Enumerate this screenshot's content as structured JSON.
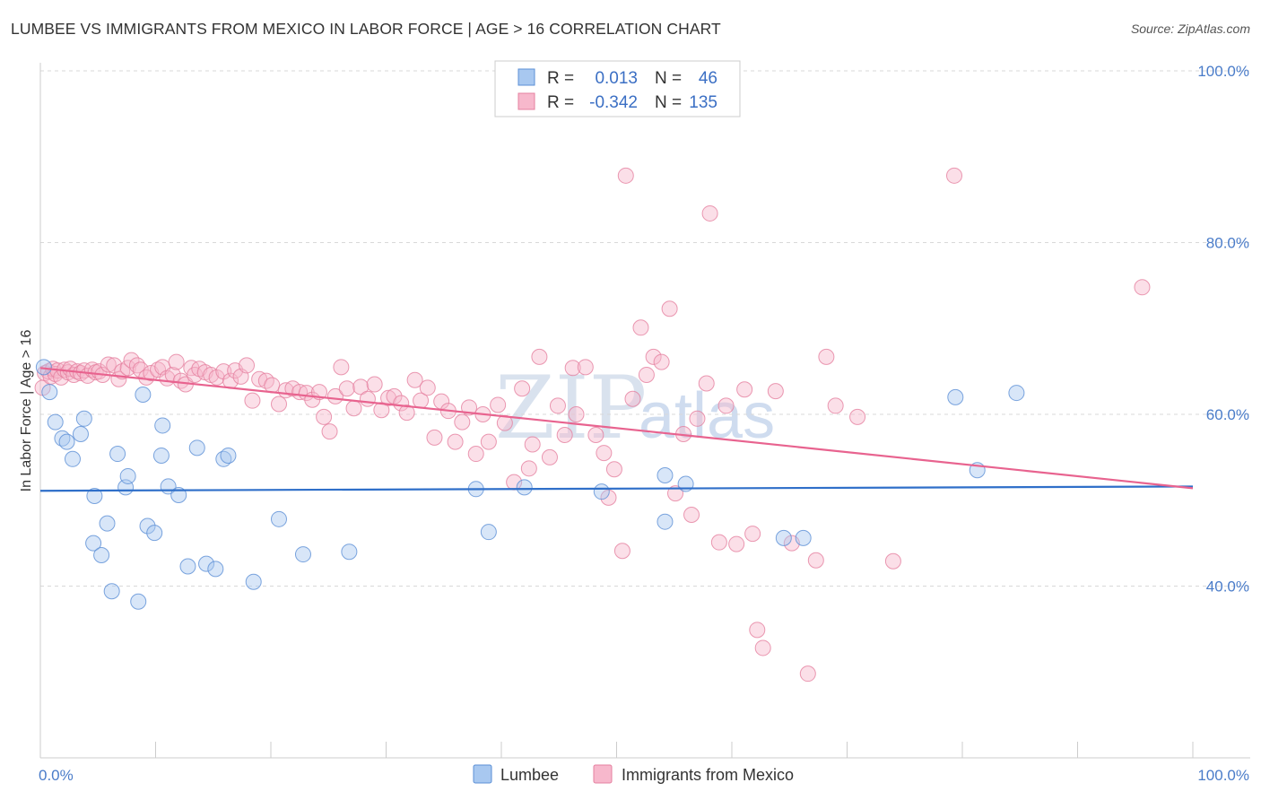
{
  "title": "LUMBEE VS IMMIGRANTS FROM MEXICO IN LABOR FORCE | AGE > 16 CORRELATION CHART",
  "source": "Source: ZipAtlas.com",
  "watermark": {
    "zip": "ZIP",
    "atlas": "atlas"
  },
  "stats": {
    "r_label": "R =",
    "n_label": "N =",
    "rows": [
      {
        "r": "0.013",
        "n": "46"
      },
      {
        "r": "-0.342",
        "n": "135"
      }
    ]
  },
  "colors": {
    "lumbee_fill": "#a8c8f0",
    "lumbee_stroke": "#5b8fd6",
    "lumbee_line": "#2f6fc9",
    "mexico_fill": "#f7b8cc",
    "mexico_stroke": "#e5809f",
    "mexico_line": "#e8638f",
    "grid": "#d8d8d8",
    "tick_text": "#4a7cc9"
  },
  "chart_data": {
    "type": "scatter",
    "title": "LUMBEE VS IMMIGRANTS FROM MEXICO IN LABOR FORCE | AGE > 16 CORRELATION CHART",
    "xlabel": "",
    "ylabel": "In Labor Force | Age > 16",
    "xlim": [
      0,
      100
    ],
    "ylim": [
      20,
      100
    ],
    "x_tick_labels": [
      "0.0%",
      "100.0%"
    ],
    "y_ticks": [
      40,
      60,
      80,
      100
    ],
    "y_tick_labels": [
      "40.0%",
      "60.0%",
      "80.0%",
      "100.0%"
    ],
    "grid": true,
    "legend_position": "bottom-center",
    "series": [
      {
        "name": "Lumbee",
        "r": 0.013,
        "n": 46,
        "trend": [
          [
            0,
            51.1
          ],
          [
            100,
            51.6
          ]
        ],
        "points": [
          [
            0.3,
            65.5
          ],
          [
            0.8,
            62.6
          ],
          [
            1.3,
            59.1
          ],
          [
            1.9,
            57.2
          ],
          [
            2.3,
            56.8
          ],
          [
            2.8,
            54.8
          ],
          [
            3.5,
            57.7
          ],
          [
            3.8,
            59.5
          ],
          [
            4.6,
            45.0
          ],
          [
            4.7,
            50.5
          ],
          [
            5.3,
            43.6
          ],
          [
            5.8,
            47.3
          ],
          [
            6.2,
            39.4
          ],
          [
            6.7,
            55.4
          ],
          [
            7.4,
            51.5
          ],
          [
            7.6,
            52.8
          ],
          [
            8.5,
            38.2
          ],
          [
            8.9,
            62.3
          ],
          [
            9.3,
            47.0
          ],
          [
            9.9,
            46.2
          ],
          [
            10.5,
            55.2
          ],
          [
            10.6,
            58.7
          ],
          [
            11.1,
            51.6
          ],
          [
            12.0,
            50.6
          ],
          [
            12.8,
            42.3
          ],
          [
            13.6,
            56.1
          ],
          [
            14.4,
            42.6
          ],
          [
            15.2,
            42.0
          ],
          [
            15.9,
            54.8
          ],
          [
            16.3,
            55.2
          ],
          [
            18.5,
            40.5
          ],
          [
            20.7,
            47.8
          ],
          [
            22.8,
            43.7
          ],
          [
            26.8,
            44.0
          ],
          [
            37.8,
            51.3
          ],
          [
            38.9,
            46.3
          ],
          [
            42.0,
            51.5
          ],
          [
            48.7,
            51.0
          ],
          [
            54.2,
            52.9
          ],
          [
            54.2,
            47.5
          ],
          [
            56.0,
            51.9
          ],
          [
            64.5,
            45.6
          ],
          [
            66.2,
            45.6
          ],
          [
            79.4,
            62.0
          ],
          [
            81.3,
            53.5
          ],
          [
            84.7,
            62.5
          ]
        ]
      },
      {
        "name": "Immigrants from Mexico",
        "r": -0.342,
        "n": 135,
        "trend": [
          [
            0,
            65.4
          ],
          [
            100,
            51.4
          ]
        ],
        "points": [
          [
            0.2,
            63.1
          ],
          [
            0.4,
            64.8
          ],
          [
            0.7,
            65.0
          ],
          [
            0.9,
            64.4
          ],
          [
            1.1,
            65.3
          ],
          [
            1.3,
            64.7
          ],
          [
            1.5,
            65.1
          ],
          [
            1.8,
            64.3
          ],
          [
            2.1,
            65.2
          ],
          [
            2.4,
            64.9
          ],
          [
            2.6,
            65.3
          ],
          [
            2.9,
            64.6
          ],
          [
            3.2,
            65.0
          ],
          [
            3.5,
            64.8
          ],
          [
            3.8,
            65.1
          ],
          [
            4.1,
            64.5
          ],
          [
            4.5,
            65.2
          ],
          [
            4.8,
            64.9
          ],
          [
            5.1,
            65.0
          ],
          [
            5.4,
            64.6
          ],
          [
            5.9,
            65.8
          ],
          [
            6.4,
            65.7
          ],
          [
            6.8,
            64.1
          ],
          [
            7.1,
            65.0
          ],
          [
            7.6,
            65.4
          ],
          [
            7.9,
            66.3
          ],
          [
            8.4,
            65.7
          ],
          [
            8.7,
            65.2
          ],
          [
            9.2,
            64.3
          ],
          [
            9.6,
            64.8
          ],
          [
            10.2,
            65.2
          ],
          [
            10.6,
            65.5
          ],
          [
            11.0,
            64.2
          ],
          [
            11.5,
            64.6
          ],
          [
            11.8,
            66.1
          ],
          [
            12.2,
            63.9
          ],
          [
            12.6,
            63.5
          ],
          [
            13.1,
            65.4
          ],
          [
            13.4,
            64.6
          ],
          [
            13.8,
            65.3
          ],
          [
            14.3,
            64.9
          ],
          [
            14.8,
            64.6
          ],
          [
            15.3,
            64.3
          ],
          [
            15.9,
            65.0
          ],
          [
            16.5,
            63.9
          ],
          [
            16.9,
            65.1
          ],
          [
            17.4,
            64.4
          ],
          [
            17.9,
            65.7
          ],
          [
            18.4,
            61.6
          ],
          [
            19.0,
            64.1
          ],
          [
            19.6,
            63.9
          ],
          [
            20.1,
            63.4
          ],
          [
            20.7,
            61.2
          ],
          [
            21.3,
            62.8
          ],
          [
            21.9,
            63.0
          ],
          [
            22.5,
            62.6
          ],
          [
            23.1,
            62.5
          ],
          [
            23.6,
            61.7
          ],
          [
            24.2,
            62.6
          ],
          [
            24.6,
            59.7
          ],
          [
            25.1,
            58.0
          ],
          [
            25.6,
            62.1
          ],
          [
            26.1,
            65.5
          ],
          [
            26.6,
            63.0
          ],
          [
            27.2,
            60.7
          ],
          [
            27.8,
            63.2
          ],
          [
            28.4,
            61.8
          ],
          [
            29.0,
            63.5
          ],
          [
            29.6,
            60.5
          ],
          [
            30.2,
            61.9
          ],
          [
            30.7,
            62.1
          ],
          [
            31.3,
            61.3
          ],
          [
            31.8,
            60.2
          ],
          [
            32.5,
            64.0
          ],
          [
            33.0,
            61.6
          ],
          [
            33.6,
            63.1
          ],
          [
            34.2,
            57.3
          ],
          [
            34.8,
            61.5
          ],
          [
            35.4,
            60.4
          ],
          [
            36.0,
            56.8
          ],
          [
            36.6,
            59.1
          ],
          [
            37.2,
            60.8
          ],
          [
            37.8,
            55.4
          ],
          [
            38.4,
            60.0
          ],
          [
            38.9,
            56.8
          ],
          [
            39.7,
            61.1
          ],
          [
            40.3,
            59.0
          ],
          [
            41.1,
            52.1
          ],
          [
            41.8,
            63.0
          ],
          [
            42.4,
            53.7
          ],
          [
            42.7,
            56.5
          ],
          [
            43.3,
            66.7
          ],
          [
            44.2,
            55.0
          ],
          [
            44.9,
            61.0
          ],
          [
            45.5,
            57.6
          ],
          [
            46.2,
            65.4
          ],
          [
            46.5,
            60.0
          ],
          [
            47.3,
            65.5
          ],
          [
            48.2,
            57.6
          ],
          [
            48.9,
            55.5
          ],
          [
            49.3,
            50.3
          ],
          [
            49.8,
            53.6
          ],
          [
            50.5,
            44.1
          ],
          [
            50.8,
            87.8
          ],
          [
            51.4,
            61.8
          ],
          [
            52.1,
            70.1
          ],
          [
            52.6,
            64.6
          ],
          [
            53.2,
            66.7
          ],
          [
            53.9,
            66.1
          ],
          [
            54.6,
            72.3
          ],
          [
            55.1,
            50.8
          ],
          [
            55.8,
            57.7
          ],
          [
            56.5,
            48.3
          ],
          [
            57.0,
            59.5
          ],
          [
            57.8,
            63.6
          ],
          [
            58.1,
            83.4
          ],
          [
            58.9,
            45.1
          ],
          [
            59.5,
            61.0
          ],
          [
            60.4,
            44.9
          ],
          [
            61.1,
            62.9
          ],
          [
            61.8,
            46.1
          ],
          [
            62.2,
            34.9
          ],
          [
            62.7,
            32.8
          ],
          [
            63.8,
            62.7
          ],
          [
            65.2,
            45.0
          ],
          [
            66.6,
            29.8
          ],
          [
            67.3,
            43.0
          ],
          [
            68.2,
            66.7
          ],
          [
            69.0,
            61.0
          ],
          [
            70.9,
            59.7
          ],
          [
            74.0,
            42.9
          ],
          [
            79.3,
            87.8
          ],
          [
            95.6,
            74.8
          ]
        ]
      }
    ]
  },
  "legend": {
    "items": [
      {
        "label": "Lumbee"
      },
      {
        "label": "Immigrants from Mexico"
      }
    ]
  }
}
